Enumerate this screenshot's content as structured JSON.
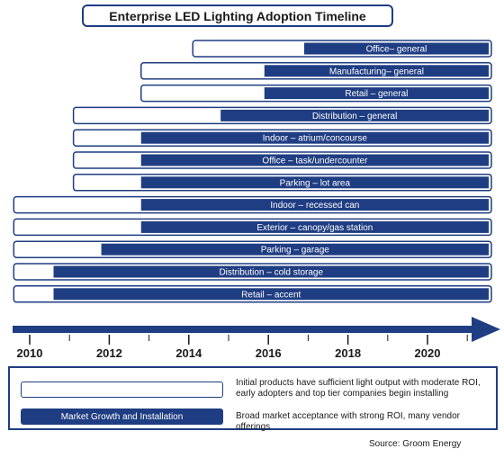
{
  "chart_data": {
    "type": "timeline",
    "title": "Enterprise LED Lighting Adoption Timeline",
    "xlim": [
      2009.6,
      2021.6
    ],
    "x_ticks": [
      "2010",
      "2012",
      "2014",
      "2016",
      "2018",
      "2020"
    ],
    "x_tick_values": [
      2010,
      2012,
      2014,
      2016,
      2018,
      2020
    ],
    "minor_tick_values": [
      2011,
      2013,
      2015,
      2017,
      2019,
      2021
    ],
    "rows": [
      {
        "label": "Office– general",
        "early_start": 2014.1,
        "growth_start": 2016.9
      },
      {
        "label": "Manufacturing– general",
        "early_start": 2012.8,
        "growth_start": 2015.9
      },
      {
        "label": "Retail – general",
        "early_start": 2012.8,
        "growth_start": 2015.9
      },
      {
        "label": "Distribution – general",
        "early_start": 2011.1,
        "growth_start": 2014.8
      },
      {
        "label": "Indoor – atrium/concourse",
        "early_start": 2011.1,
        "growth_start": 2012.8
      },
      {
        "label": "Office – task/undercounter",
        "early_start": 2011.1,
        "growth_start": 2012.8
      },
      {
        "label": "Parking – lot area",
        "early_start": 2011.1,
        "growth_start": 2012.8
      },
      {
        "label": "Indoor – recessed can",
        "early_start": 2009.6,
        "growth_start": 2012.8
      },
      {
        "label": "Exterior – canopy/gas station",
        "early_start": 2009.6,
        "growth_start": 2012.8
      },
      {
        "label": "Parking – garage",
        "early_start": 2009.6,
        "growth_start": 2011.8
      },
      {
        "label": "Distribution – cold storage",
        "early_start": 2009.6,
        "growth_start": 2010.6
      },
      {
        "label": "Retail – accent",
        "early_start": 2009.6,
        "growth_start": 2010.6
      }
    ],
    "legend": {
      "early_label": "",
      "early_description": "Initial products have sufficient light output with moderate ROI, early adopters and top tier companies begin installing",
      "growth_label": "Market Growth and Installation",
      "growth_description": "Broad market acceptance with strong ROI, many vendor offerings"
    },
    "source": "Source: Groom Energy",
    "colors": {
      "bar": "#1f3d82",
      "outline": "#1f3d82",
      "text_on_bar": "#ffffff"
    }
  }
}
